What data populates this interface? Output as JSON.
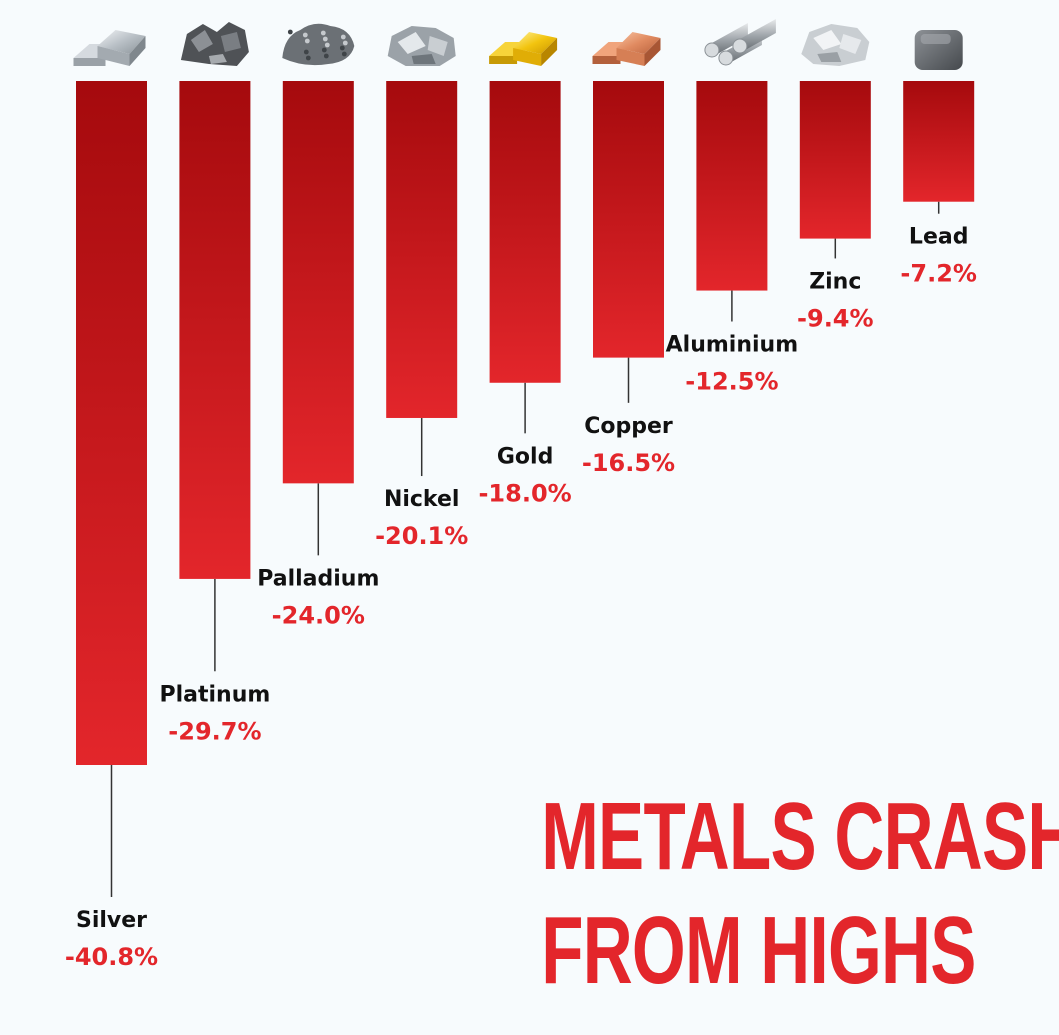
{
  "headline": {
    "line1": "METALS CRASH",
    "line2": "FROM HIGHS"
  },
  "colors": {
    "bar_top": "#a50a0d",
    "bar_bottom": "#e3262b",
    "value_text": "#e3262b",
    "label_text": "#111111",
    "leader_line": "#333333",
    "background": "#f7fbfd"
  },
  "chart_data": {
    "type": "bar",
    "orientation": "vertical-downward",
    "categories": [
      "Silver",
      "Platinum",
      "Palladium",
      "Nickel",
      "Gold",
      "Copper",
      "Aluminium",
      "Zinc",
      "Lead"
    ],
    "values": [
      -40.8,
      -29.7,
      -24.0,
      -20.1,
      -18.0,
      -16.5,
      -12.5,
      -9.4,
      -7.2
    ],
    "value_labels": [
      "-40.8%",
      "-29.7%",
      "-24.0%",
      "-20.1%",
      "-18.0%",
      "-16.5%",
      "-12.5%",
      "-9.4%",
      "-7.2%"
    ],
    "icons": [
      "silver-bar-icon",
      "platinum-nugget-icon",
      "palladium-nugget-icon",
      "nickel-nugget-icon",
      "gold-bar-icon",
      "copper-bar-icon",
      "aluminium-rods-icon",
      "zinc-chunk-icon",
      "lead-cube-icon"
    ],
    "ylim": [
      -40.8,
      0
    ],
    "grid": false,
    "legend": "none"
  }
}
